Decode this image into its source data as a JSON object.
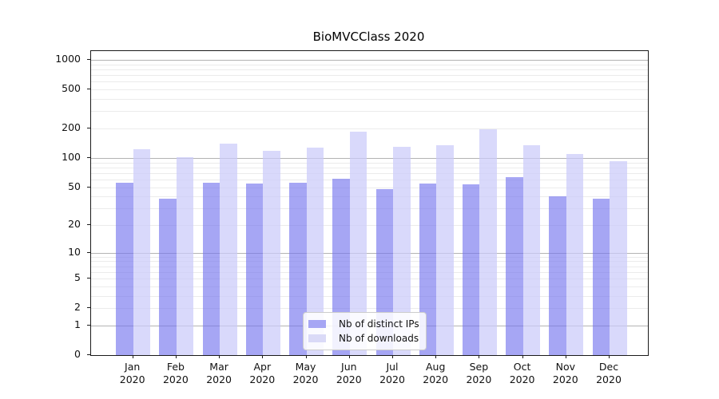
{
  "title": "BioMVCClass 2020",
  "colors": {
    "bar_ips": "rgba(118,118,238,0.65)",
    "bar_ips_flat": "#a6a6f4",
    "bar_downloads": "rgba(203,203,249,0.72)",
    "bar_downloads_flat": "#dadaf7",
    "grid_major": "#b3b3b3",
    "grid_minor": "#ebebeb",
    "axis": "#1a1a1a"
  },
  "x_axis": {
    "months": [
      "Jan",
      "Feb",
      "Mar",
      "Apr",
      "May",
      "Jun",
      "Jul",
      "Aug",
      "Sep",
      "Oct",
      "Nov",
      "Dec"
    ],
    "year": "2020"
  },
  "chart_data": {
    "type": "bar",
    "title": "BioMVCClass 2020",
    "categories": [
      "Jan 2020",
      "Feb 2020",
      "Mar 2020",
      "Apr 2020",
      "May 2020",
      "Jun 2020",
      "Jul 2020",
      "Aug 2020",
      "Sep 2020",
      "Oct 2020",
      "Nov 2020",
      "Dec 2020"
    ],
    "series": [
      {
        "name": "Nb of distinct IPs",
        "color": "#a6a6f4",
        "values": [
          56,
          38,
          56,
          54,
          56,
          61,
          48,
          54,
          53,
          64,
          40,
          38
        ]
      },
      {
        "name": "Nb of downloads",
        "color": "#dadaf7",
        "values": [
          123,
          101,
          140,
          119,
          127,
          187,
          131,
          135,
          196,
          135,
          109,
          93
        ]
      }
    ],
    "xlabel": "",
    "ylabel": "",
    "yscale": "log1p",
    "yticks": [
      0,
      1,
      2,
      5,
      10,
      20,
      50,
      100,
      200,
      500,
      1000
    ],
    "ylim": [
      0,
      1230
    ],
    "grid": true,
    "legend_position": "lower center"
  }
}
